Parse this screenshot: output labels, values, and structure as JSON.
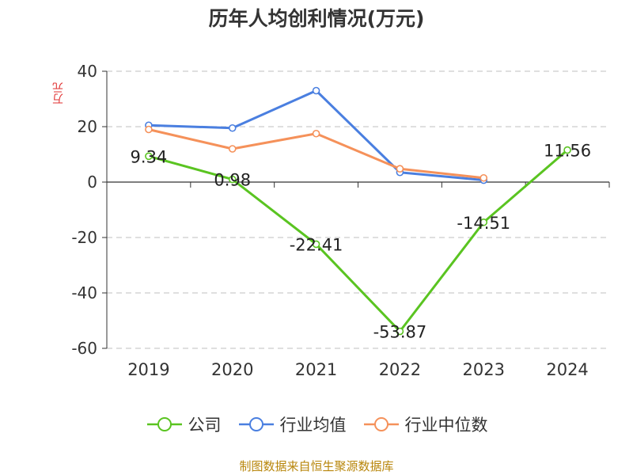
{
  "title": "历年人均创利情况(万元)",
  "source": "制图数据来自恒生聚源数据库",
  "colors": {
    "company": "#5ac421",
    "industry_avg": "#4a7fe0",
    "industry_median": "#f5915a",
    "grid": "#cccccc",
    "axis": "#333333"
  },
  "chart_data": {
    "type": "line",
    "title": "历年人均创利情况(万元)",
    "ylabel": "万元",
    "ylim": [
      -60,
      40
    ],
    "yticks": [
      40,
      20,
      0,
      -20,
      -40,
      -60
    ],
    "grid": true,
    "legend_position": "bottom",
    "x": [
      "2019",
      "2020",
      "2021",
      "2022",
      "2023",
      "2024"
    ],
    "series": [
      {
        "name": "公司",
        "color": "#5ac421",
        "values": [
          9.34,
          0.98,
          -22.41,
          -53.87,
          -14.51,
          11.56
        ],
        "labels": [
          "9.34",
          "0.98",
          "-22.41",
          "-53.87",
          "-14.51",
          "11.56"
        ]
      },
      {
        "name": "行业均值",
        "color": "#4a7fe0",
        "values": [
          20.5,
          19.5,
          33.0,
          3.5,
          0.7,
          null
        ]
      },
      {
        "name": "行业中位数",
        "color": "#f5915a",
        "values": [
          19.0,
          12.0,
          17.5,
          4.8,
          1.5,
          null
        ]
      }
    ]
  }
}
